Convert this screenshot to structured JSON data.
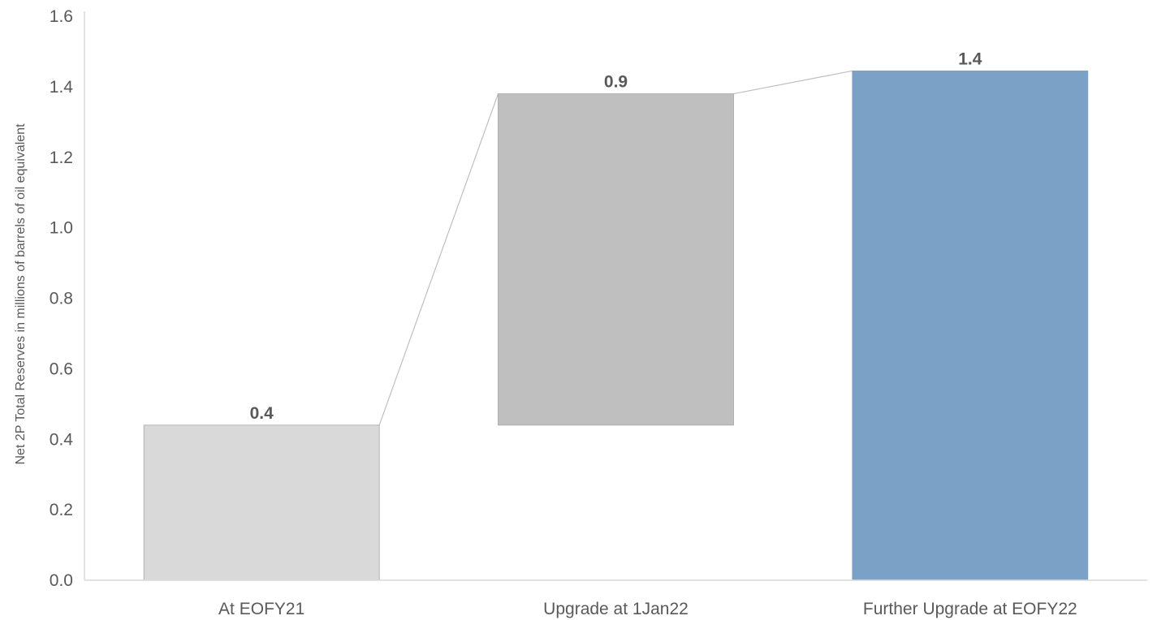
{
  "chart_data": {
    "type": "bar",
    "subtype": "waterfall",
    "categories": [
      "At EOFY21",
      "Upgrade at 1Jan22",
      "Further Upgrade at EOFY22"
    ],
    "bars": [
      {
        "category": "At EOFY21",
        "base": 0.0,
        "value": 0.44,
        "label": "0.4",
        "color": "#d9d9d9"
      },
      {
        "category": "Upgrade at 1Jan22",
        "base": 0.44,
        "value": 0.94,
        "label": "0.9",
        "color": "#bfbfbf"
      },
      {
        "category": "Further Upgrade at EOFY22",
        "base": 0.0,
        "value": 1.445,
        "label": "1.4",
        "color": "#7ba1c7"
      }
    ],
    "title": "",
    "xlabel": "",
    "ylabel": "Net 2P Total Reserves in millions of barrels of oil equivalent",
    "ylim": [
      0,
      1.6
    ],
    "yticks": [
      "0.0",
      "0.2",
      "0.4",
      "0.6",
      "0.8",
      "1.0",
      "1.2",
      "1.4",
      "1.6"
    ],
    "grid": false,
    "connector_lines": true
  }
}
